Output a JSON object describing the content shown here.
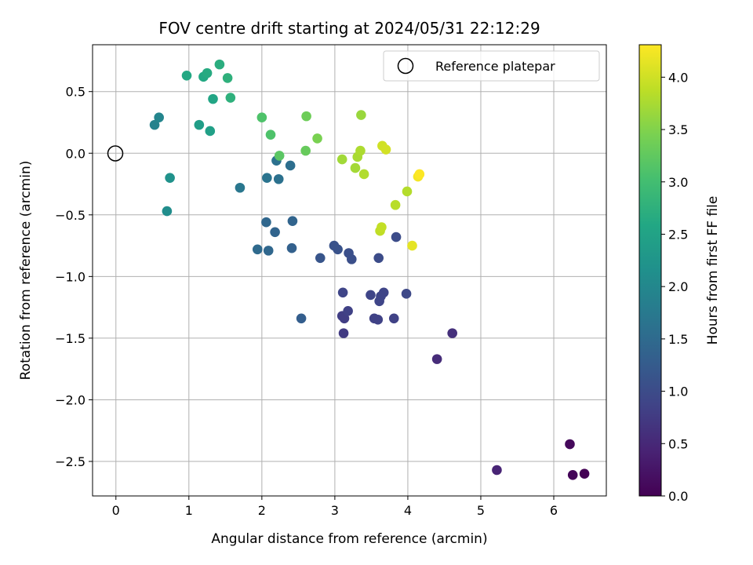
{
  "chart_data": {
    "type": "scatter",
    "title": "FOV centre drift starting at 2024/05/31 22:12:29",
    "xlabel": "Angular distance from reference (arcmin)",
    "ylabel": "Rotation from reference (arcmin)",
    "xlim": [
      -0.32,
      6.72
    ],
    "ylim": [
      -2.78,
      0.88
    ],
    "x_ticks": [
      0,
      1,
      2,
      3,
      4,
      5,
      6
    ],
    "y_ticks": [
      -2.5,
      -2.0,
      -1.5,
      -1.0,
      -0.5,
      0.0,
      0.5
    ],
    "x_tick_labels": [
      "0",
      "1",
      "2",
      "3",
      "4",
      "5",
      "6"
    ],
    "y_tick_labels": [
      "−2.5",
      "−2.0",
      "−1.5",
      "−1.0",
      "−0.5",
      "0.0",
      "0.5"
    ],
    "grid": true,
    "legend_position": "top-right",
    "legend": {
      "label": "Reference platepar"
    },
    "reference_point": {
      "x": 0,
      "y": 0
    },
    "colorbar": {
      "label": "Hours from first FF file",
      "colormap": "viridis",
      "range": [
        0.0,
        4.31
      ],
      "ticks": [
        0.0,
        0.5,
        1.0,
        1.5,
        2.0,
        2.5,
        3.0,
        3.5,
        4.0
      ],
      "tick_labels": [
        "0.0",
        "0.5",
        "1.0",
        "1.5",
        "2.0",
        "2.5",
        "3.0",
        "3.5",
        "4.0"
      ]
    },
    "points": [
      {
        "x": 6.42,
        "y": -2.6,
        "hours": 0.0
      },
      {
        "x": 6.26,
        "y": -2.61,
        "hours": 0.05
      },
      {
        "x": 6.22,
        "y": -2.36,
        "hours": 0.1
      },
      {
        "x": 5.22,
        "y": -2.57,
        "hours": 0.45
      },
      {
        "x": 4.4,
        "y": -1.67,
        "hours": 0.55
      },
      {
        "x": 4.61,
        "y": -1.46,
        "hours": 0.6
      },
      {
        "x": 3.12,
        "y": -1.46,
        "hours": 0.75
      },
      {
        "x": 3.1,
        "y": -1.32,
        "hours": 0.8
      },
      {
        "x": 3.13,
        "y": -1.34,
        "hours": 0.8
      },
      {
        "x": 3.18,
        "y": -1.28,
        "hours": 0.85
      },
      {
        "x": 3.54,
        "y": -1.34,
        "hours": 0.85
      },
      {
        "x": 3.59,
        "y": -1.35,
        "hours": 0.85
      },
      {
        "x": 3.81,
        "y": -1.34,
        "hours": 0.85
      },
      {
        "x": 3.11,
        "y": -1.13,
        "hours": 0.9
      },
      {
        "x": 3.49,
        "y": -1.15,
        "hours": 0.9
      },
      {
        "x": 3.61,
        "y": -1.2,
        "hours": 0.9
      },
      {
        "x": 3.67,
        "y": -1.13,
        "hours": 0.9
      },
      {
        "x": 3.63,
        "y": -1.16,
        "hours": 0.9
      },
      {
        "x": 3.98,
        "y": -1.14,
        "hours": 0.95
      },
      {
        "x": 3.6,
        "y": -0.85,
        "hours": 1.0
      },
      {
        "x": 3.84,
        "y": -0.68,
        "hours": 1.0
      },
      {
        "x": 3.19,
        "y": -0.81,
        "hours": 1.05
      },
      {
        "x": 3.23,
        "y": -0.86,
        "hours": 1.05
      },
      {
        "x": 3.04,
        "y": -0.78,
        "hours": 1.1
      },
      {
        "x": 2.99,
        "y": -0.75,
        "hours": 1.1
      },
      {
        "x": 2.8,
        "y": -0.85,
        "hours": 1.15
      },
      {
        "x": 2.54,
        "y": -1.34,
        "hours": 1.3
      },
      {
        "x": 2.41,
        "y": -0.77,
        "hours": 1.35
      },
      {
        "x": 2.42,
        "y": -0.55,
        "hours": 1.4
      },
      {
        "x": 2.18,
        "y": -0.64,
        "hours": 1.4
      },
      {
        "x": 2.06,
        "y": -0.56,
        "hours": 1.45
      },
      {
        "x": 2.09,
        "y": -0.79,
        "hours": 1.45
      },
      {
        "x": 1.94,
        "y": -0.78,
        "hours": 1.5
      },
      {
        "x": 2.39,
        "y": -0.1,
        "hours": 1.55
      },
      {
        "x": 2.2,
        "y": -0.06,
        "hours": 1.6
      },
      {
        "x": 2.23,
        "y": -0.21,
        "hours": 1.6
      },
      {
        "x": 2.07,
        "y": -0.2,
        "hours": 1.65
      },
      {
        "x": 1.7,
        "y": -0.28,
        "hours": 1.7
      },
      {
        "x": 0.53,
        "y": 0.23,
        "hours": 1.9
      },
      {
        "x": 0.59,
        "y": 0.29,
        "hours": 1.95
      },
      {
        "x": 0.7,
        "y": -0.47,
        "hours": 2.1
      },
      {
        "x": 0.74,
        "y": -0.2,
        "hours": 2.2
      },
      {
        "x": 1.14,
        "y": 0.23,
        "hours": 2.4
      },
      {
        "x": 1.29,
        "y": 0.18,
        "hours": 2.45
      },
      {
        "x": 1.33,
        "y": 0.44,
        "hours": 2.55
      },
      {
        "x": 0.97,
        "y": 0.63,
        "hours": 2.6
      },
      {
        "x": 1.2,
        "y": 0.62,
        "hours": 2.6
      },
      {
        "x": 1.25,
        "y": 0.65,
        "hours": 2.65
      },
      {
        "x": 1.42,
        "y": 0.72,
        "hours": 2.7
      },
      {
        "x": 1.53,
        "y": 0.61,
        "hours": 2.75
      },
      {
        "x": 1.57,
        "y": 0.45,
        "hours": 2.75
      },
      {
        "x": 2.0,
        "y": 0.29,
        "hours": 3.1
      },
      {
        "x": 2.12,
        "y": 0.15,
        "hours": 3.1
      },
      {
        "x": 2.24,
        "y": -0.02,
        "hours": 3.2
      },
      {
        "x": 2.6,
        "y": 0.02,
        "hours": 3.3
      },
      {
        "x": 2.61,
        "y": 0.3,
        "hours": 3.35
      },
      {
        "x": 2.76,
        "y": 0.12,
        "hours": 3.45
      },
      {
        "x": 3.36,
        "y": 0.31,
        "hours": 3.65
      },
      {
        "x": 3.1,
        "y": -0.05,
        "hours": 3.7
      },
      {
        "x": 3.28,
        "y": -0.12,
        "hours": 3.72
      },
      {
        "x": 3.31,
        "y": -0.03,
        "hours": 3.75
      },
      {
        "x": 3.35,
        "y": 0.02,
        "hours": 3.78
      },
      {
        "x": 3.4,
        "y": -0.17,
        "hours": 3.8
      },
      {
        "x": 3.99,
        "y": -0.31,
        "hours": 3.82
      },
      {
        "x": 3.83,
        "y": -0.42,
        "hours": 3.85
      },
      {
        "x": 3.62,
        "y": -0.63,
        "hours": 3.9
      },
      {
        "x": 3.64,
        "y": -0.6,
        "hours": 3.92
      },
      {
        "x": 3.65,
        "y": 0.06,
        "hours": 4.0
      },
      {
        "x": 3.7,
        "y": 0.03,
        "hours": 4.02
      },
      {
        "x": 4.06,
        "y": -0.75,
        "hours": 4.15
      },
      {
        "x": 4.14,
        "y": -0.19,
        "hours": 4.25
      },
      {
        "x": 4.16,
        "y": -0.17,
        "hours": 4.3
      }
    ]
  }
}
